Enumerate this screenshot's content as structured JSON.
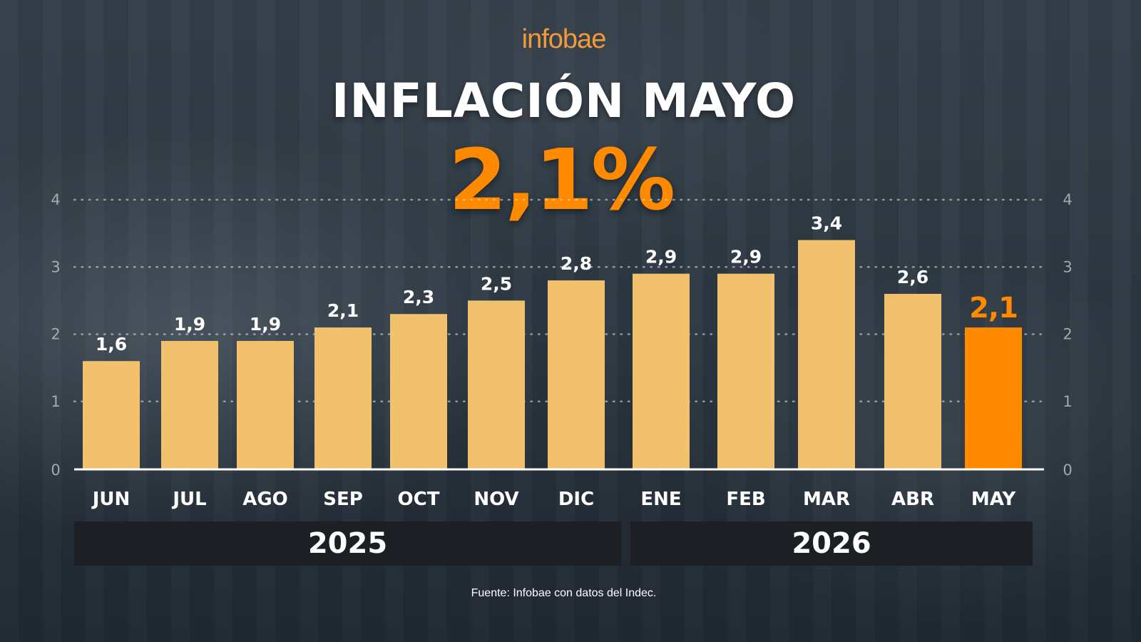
{
  "header": {
    "logo": "infobae",
    "title": "INFLACIÓN MAYO",
    "headline_value": "2,1%"
  },
  "colors": {
    "bar": "#f2c16e",
    "bar_highlight": "#ff8a00",
    "highlight_label": "#ff8a00",
    "logo": "#f29a3a",
    "year_box": "#1c1f24"
  },
  "chart_data": {
    "type": "bar",
    "categories": [
      "JUN",
      "JUL",
      "AGO",
      "SEP",
      "OCT",
      "NOV",
      "DIC",
      "ENE",
      "FEB",
      "MAR",
      "ABR",
      "MAY"
    ],
    "values": [
      1.6,
      1.9,
      1.9,
      2.1,
      2.3,
      2.5,
      2.8,
      2.9,
      2.9,
      3.4,
      2.6,
      2.1
    ],
    "data_labels": [
      "1,6",
      "1,9",
      "1,9",
      "2,1",
      "2,3",
      "2,5",
      "2,8",
      "2,9",
      "2,9",
      "3,4",
      "2,6",
      "2,1"
    ],
    "highlight_index": 11,
    "ylim": [
      0,
      4
    ],
    "yticks": [
      0,
      1,
      2,
      3,
      4
    ],
    "grid": true,
    "year_groups": [
      {
        "label": "2025",
        "categories": [
          "JUN",
          "JUL",
          "AGO",
          "SEP",
          "OCT",
          "NOV",
          "DIC"
        ]
      },
      {
        "label": "2026",
        "categories": [
          "ENE",
          "FEB",
          "MAR",
          "ABR",
          "MAY"
        ]
      }
    ]
  },
  "source": "Fuente: Infobae con datos del Indec."
}
